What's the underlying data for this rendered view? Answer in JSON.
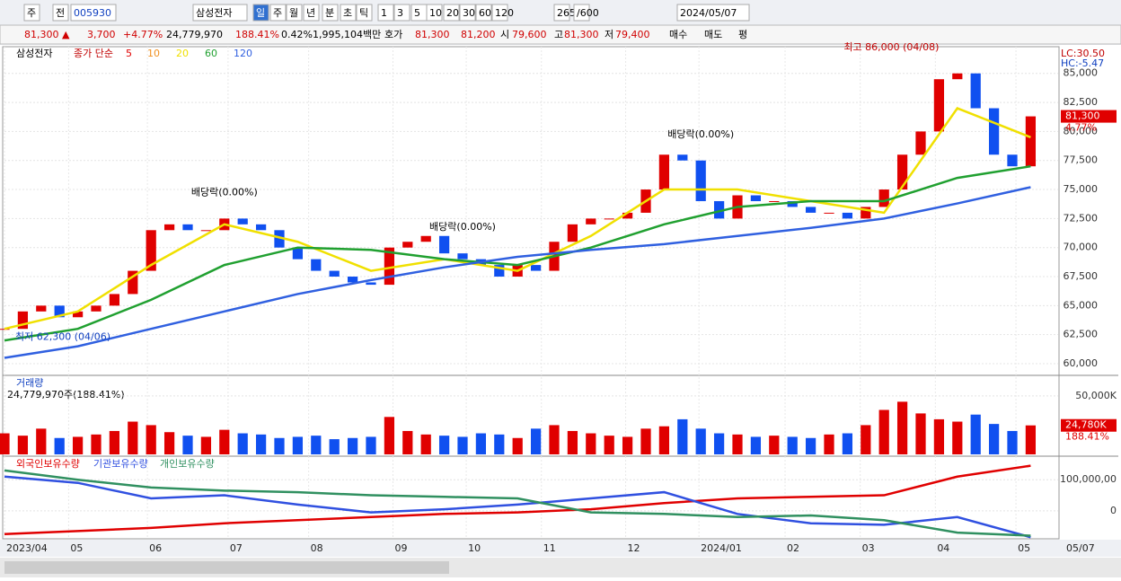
{
  "toolbar": {
    "items": [
      "주",
      "전",
      "005930",
      "삼성전자",
      "일",
      "주",
      "월",
      "년",
      "분",
      "초",
      "틱",
      "1",
      "3",
      "5",
      "10",
      "20",
      "30",
      "60",
      "120",
      "265",
      "/600",
      "2024/05/07"
    ]
  },
  "quote": [
    "81,300 ▲",
    "3,700",
    "+4.77%",
    "24,779,970",
    "188.41%",
    "0.42%",
    "1,995,104백만",
    "호가",
    "81,300",
    "81,200",
    "시",
    "79,600",
    "고",
    "81,300",
    "저",
    "79,400",
    "매수",
    "매도",
    "평"
  ],
  "chart_data": [
    {
      "type": "candlestick",
      "title": "삼성전자",
      "legend_label": "종가 단순",
      "up_color": "#e00000",
      "down_color": "#1050f0",
      "x": [
        0,
        1,
        2,
        3,
        4,
        5,
        6,
        7,
        8,
        9,
        10,
        11,
        12,
        13,
        14,
        15,
        16,
        17,
        18,
        19,
        20,
        21,
        22,
        23,
        24,
        25,
        26,
        27,
        28,
        29,
        30,
        31,
        32,
        33,
        34,
        35,
        36,
        37,
        38,
        39,
        40,
        41,
        42,
        43,
        44,
        45,
        46,
        47,
        48,
        49,
        50,
        51,
        52,
        53,
        54,
        55,
        56
      ],
      "close": [
        63000,
        64500,
        65000,
        64000,
        64500,
        65000,
        66000,
        68000,
        71500,
        72000,
        71500,
        71500,
        72500,
        72000,
        71500,
        70000,
        69000,
        68000,
        67500,
        67000,
        66800,
        70000,
        70500,
        71000,
        69500,
        69000,
        68500,
        67500,
        68500,
        68000,
        70500,
        72000,
        72500,
        72500,
        73000,
        75000,
        78000,
        77500,
        74000,
        72500,
        74500,
        74000,
        74000,
        73500,
        73000,
        73000,
        72500,
        73500,
        75000,
        78000,
        80000,
        84500,
        85000,
        82000,
        78000,
        77000,
        81300
      ],
      "series": [
        {
          "name": "5",
          "color": "#e00000"
        },
        {
          "name": "10",
          "color": "#f09020"
        },
        {
          "name": "20",
          "color": "#f0e000",
          "x": [
            0,
            4,
            8,
            12,
            16,
            20,
            24,
            28,
            32,
            36,
            40,
            44,
            48,
            52,
            56
          ],
          "values": [
            63000,
            64500,
            68500,
            72000,
            70500,
            68000,
            69000,
            68000,
            71000,
            75000,
            75000,
            74000,
            73000,
            82000,
            79500
          ]
        },
        {
          "name": "60",
          "color": "#20a030",
          "x": [
            0,
            4,
            8,
            12,
            16,
            20,
            24,
            28,
            32,
            36,
            40,
            44,
            48,
            52,
            56
          ],
          "values": [
            62000,
            63000,
            65500,
            68500,
            70000,
            69800,
            69000,
            68500,
            70000,
            72000,
            73500,
            74000,
            74000,
            76000,
            77000
          ]
        },
        {
          "name": "120",
          "color": "#3060e0",
          "x": [
            0,
            4,
            8,
            12,
            16,
            20,
            24,
            28,
            32,
            36,
            40,
            44,
            48,
            52,
            56
          ],
          "values": [
            60500,
            61500,
            63000,
            64500,
            66000,
            67200,
            68300,
            69200,
            69800,
            70300,
            71000,
            71700,
            72500,
            73800,
            75200
          ]
        }
      ],
      "xlim": [
        0,
        57.5
      ],
      "ylim": [
        59150,
        87300
      ],
      "yticks": [
        {
          "value": 60000,
          "label": "60,000"
        },
        {
          "value": 62500,
          "label": "62,500"
        },
        {
          "value": 65000,
          "label": "65,000"
        },
        {
          "value": 67500,
          "label": "67,500"
        },
        {
          "value": 70000,
          "label": "70,000"
        },
        {
          "value": 72500,
          "label": "72,500"
        },
        {
          "value": 75000,
          "label": "75,000"
        },
        {
          "value": 77500,
          "label": "77,500"
        },
        {
          "value": 80000,
          "label": "80,000"
        },
        {
          "value": 82500,
          "label": "82,500"
        },
        {
          "value": 85000,
          "label": "85,000"
        }
      ],
      "xticks": [
        {
          "value": 0,
          "label": "2023/04"
        },
        {
          "value": 3.5,
          "label": "05"
        },
        {
          "value": 7.8,
          "label": "06"
        },
        {
          "value": 12.2,
          "label": "07"
        },
        {
          "value": 16.6,
          "label": "08"
        },
        {
          "value": 21.2,
          "label": "09"
        },
        {
          "value": 25.2,
          "label": "10"
        },
        {
          "value": 29.3,
          "label": "11"
        },
        {
          "value": 33.9,
          "label": "12"
        },
        {
          "value": 37.9,
          "label": "2024/01"
        },
        {
          "value": 42.6,
          "label": "02"
        },
        {
          "value": 46.7,
          "label": "03"
        },
        {
          "value": 50.8,
          "label": "04"
        },
        {
          "value": 55.2,
          "label": "05"
        }
      ],
      "end_label": "05/07",
      "annotations": [
        {
          "text": "최고 86,000 (04/08)",
          "x": 51,
          "y": 86000
        },
        {
          "text": "최저 62,300 (04/06)",
          "x": 0,
          "y": 62300
        },
        {
          "text": "배당락(0.00%)",
          "x": 12,
          "y": 73500
        },
        {
          "text": "배당락(0.00%)",
          "x": 25,
          "y": 70500
        },
        {
          "text": "배당락(0.00%)",
          "x": 38,
          "y": 78500
        }
      ],
      "lc": "LC:30.50",
      "hc": "HC:-5.47",
      "last_label": {
        "value": 81300,
        "label": "81,300"
      },
      "last_change": "4.77%",
      "grid": true
    },
    {
      "type": "bar",
      "title": "거래량",
      "subtitle": "24,779,970주(188.41%)",
      "values": [
        18000,
        16000,
        22000,
        14000,
        15000,
        17000,
        20000,
        28000,
        25000,
        19000,
        16000,
        15000,
        21000,
        18000,
        17000,
        14000,
        15000,
        16000,
        13000,
        14000,
        15000,
        32000,
        20000,
        17000,
        16000,
        15000,
        18000,
        17000,
        14000,
        22000,
        25000,
        20000,
        18000,
        16000,
        15000,
        22000,
        24000,
        30000,
        22000,
        18000,
        17000,
        15000,
        16000,
        15000,
        14000,
        17000,
        18000,
        25000,
        38000,
        45000,
        35000,
        30000,
        28000,
        34000,
        26000,
        20000,
        24780
      ],
      "ylim": [
        0,
        66000
      ],
      "yticks": [
        {
          "value": 50000,
          "label": "50,000K"
        }
      ],
      "last_label": {
        "value": 24780,
        "label": "24,780K"
      },
      "ratio": "188.41%"
    },
    {
      "type": "line",
      "series": [
        {
          "name": "외국인보유수량",
          "color": "#e00000",
          "x": [
            0,
            4,
            8,
            12,
            16,
            20,
            24,
            28,
            32,
            36,
            40,
            44,
            48,
            52,
            56
          ],
          "values": [
            -75000000,
            -65000000,
            -55000000,
            -40000000,
            -30000000,
            -20000000,
            -10000000,
            -5000000,
            5000000,
            25000000,
            40000000,
            45000000,
            50000000,
            110000000,
            145000000
          ]
        },
        {
          "name": "기관보유수량",
          "color": "#3050e0",
          "x": [
            0,
            4,
            8,
            12,
            16,
            20,
            24,
            28,
            32,
            36,
            40,
            44,
            48,
            52,
            56
          ],
          "values": [
            110000000,
            90000000,
            40000000,
            50000000,
            20000000,
            -5000000,
            5000000,
            20000000,
            40000000,
            60000000,
            -10000000,
            -40000000,
            -45000000,
            -20000000,
            -85000000
          ]
        },
        {
          "name": "개인보유수량",
          "color": "#309060",
          "x": [
            0,
            4,
            8,
            12,
            16,
            20,
            24,
            28,
            32,
            36,
            40,
            44,
            48,
            52,
            56
          ],
          "values": [
            130000000,
            100000000,
            75000000,
            65000000,
            60000000,
            50000000,
            45000000,
            40000000,
            -5000000,
            -10000000,
            -20000000,
            -15000000,
            -30000000,
            -70000000,
            -80000000
          ]
        }
      ],
      "ylim": [
        -90000000,
        170000000
      ],
      "yticks": [
        {
          "value": 100000000,
          "label": "100,000,00"
        },
        0
      ]
    }
  ]
}
